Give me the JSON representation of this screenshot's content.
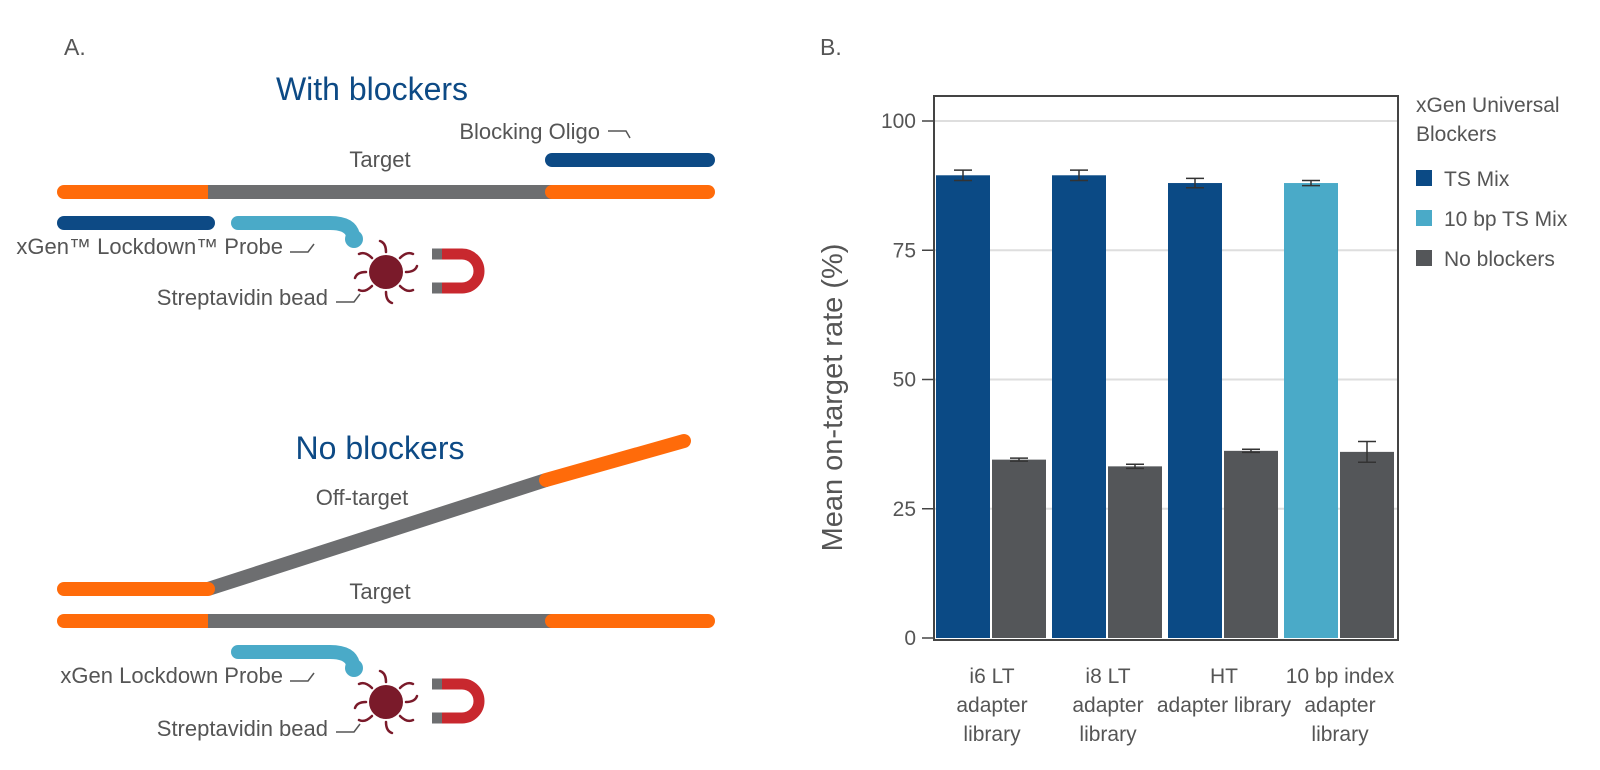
{
  "panel_a": {
    "label": "A.",
    "with_blockers": {
      "title": "With blockers",
      "blocking_oligo": "Blocking Oligo",
      "target": "Target",
      "probe": "xGen™ Lockdown™ Probe",
      "bead": "Streptavidin bead"
    },
    "no_blockers": {
      "title": "No blockers",
      "off_target": "Off-target",
      "target": "Target",
      "probe": "xGen Lockdown Probe",
      "bead": "Streptavidin bead"
    },
    "colors": {
      "adapter": "#ff6b0a",
      "target_strand": "#6d6e70",
      "blocker": "#0d4a85",
      "probe": "#4aaac8",
      "bead": "#7a1a2a",
      "magnet": "#c8282e",
      "magnet_tip": "#6d6e70"
    }
  },
  "panel_b_label": "B.",
  "chart_data": {
    "type": "bar",
    "title": "",
    "xlabel": "",
    "ylabel": "Mean on-target rate (%)",
    "ylim": [
      0,
      100
    ],
    "yticks": [
      0,
      25,
      50,
      75,
      100
    ],
    "grid": true,
    "legend_title": "xGen Universal Blockers",
    "legend_position": "right",
    "categories": [
      "i6 LT adapter library",
      "i8 LT adapter library",
      "HT adapter library",
      "10 bp index adapter library"
    ],
    "series": [
      {
        "name": "TS Mix",
        "color": "#0b4a85",
        "values": [
          89.5,
          89.5,
          88.0,
          null
        ],
        "errors": [
          1.0,
          1.0,
          0.9,
          null
        ]
      },
      {
        "name": "10 bp TS Mix",
        "color": "#4aaac8",
        "values": [
          null,
          null,
          null,
          88.0
        ],
        "errors": [
          null,
          null,
          null,
          0.5
        ]
      },
      {
        "name": "No blockers",
        "color": "#545659",
        "values": [
          34.5,
          33.2,
          36.2,
          36.0
        ],
        "errors": [
          0.3,
          0.4,
          0.3,
          2.0
        ]
      }
    ]
  }
}
